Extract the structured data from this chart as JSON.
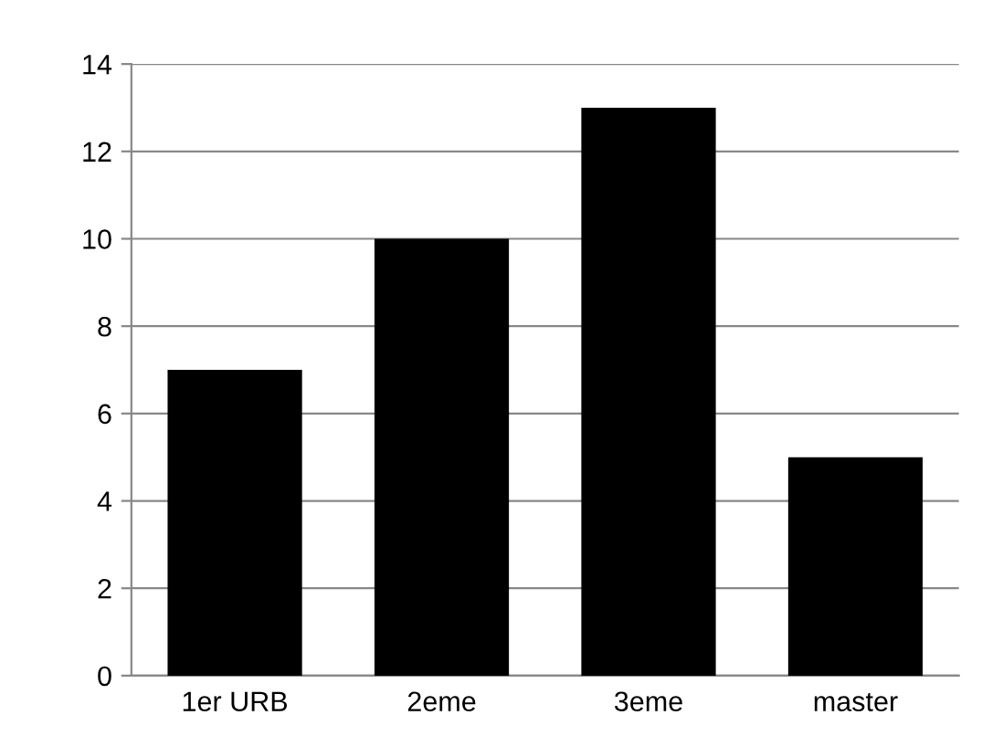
{
  "chart_data": {
    "type": "bar",
    "categories": [
      "1er URB",
      "2eme",
      "3eme",
      "master"
    ],
    "values": [
      7,
      10,
      13,
      5
    ],
    "color": "#000000",
    "ylim": [
      0,
      14
    ],
    "yticks": [
      0,
      2,
      4,
      6,
      8,
      10,
      12,
      14
    ],
    "grid": "y",
    "legend": false
  }
}
